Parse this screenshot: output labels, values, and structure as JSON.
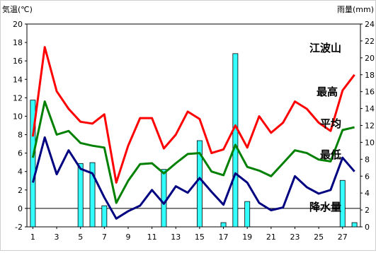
{
  "chart_data": {
    "type": "line",
    "y_left_label": "気温(℃)",
    "y_right_label": "雨量(mm)",
    "place_label": "江波山",
    "x_ticks": [
      "1",
      "3",
      "5",
      "7",
      "9",
      "11",
      "13",
      "15",
      "17",
      "19",
      "21",
      "23",
      "25",
      "27"
    ],
    "y_left_ticks": [
      "-2",
      "0",
      "2",
      "4",
      "6",
      "8",
      "10",
      "12",
      "14",
      "16",
      "18",
      "20"
    ],
    "y_right_ticks": [
      "0",
      "2",
      "4",
      "6",
      "8",
      "10",
      "12",
      "14",
      "16",
      "18",
      "20",
      "22",
      "24"
    ],
    "ylim_left": [
      -2,
      20
    ],
    "ylim_right": [
      0,
      24
    ],
    "x": [
      1,
      2,
      3,
      4,
      5,
      6,
      7,
      8,
      9,
      10,
      11,
      12,
      13,
      14,
      15,
      16,
      17,
      18,
      19,
      20,
      21,
      22,
      23,
      24,
      25,
      26,
      27,
      28
    ],
    "series": [
      {
        "name": "最高",
        "color": "#ff0000",
        "values": [
          7.8,
          17.5,
          12.7,
          10.8,
          9.4,
          9.2,
          10.2,
          2.8,
          6.8,
          9.8,
          9.8,
          6.5,
          8.0,
          10.5,
          9.7,
          6.0,
          6.4,
          9.0,
          6.6,
          10.0,
          8.2,
          9.3,
          11.6,
          10.8,
          9.3,
          8.4,
          12.8,
          14.5
        ]
      },
      {
        "name": "平均",
        "color": "#008000",
        "values": [
          5.5,
          11.6,
          8.0,
          8.4,
          7.1,
          6.8,
          6.6,
          0.6,
          3.0,
          4.8,
          4.9,
          3.8,
          4.9,
          5.9,
          6.0,
          4.0,
          3.6,
          6.9,
          4.5,
          4.1,
          3.5,
          4.9,
          6.3,
          6.0,
          5.3,
          5.1,
          8.5,
          8.8
        ]
      },
      {
        "name": "最低",
        "color": "#000080",
        "values": [
          2.8,
          7.7,
          3.7,
          6.3,
          4.3,
          3.8,
          1.2,
          -1.1,
          -0.3,
          0.3,
          2.0,
          0.5,
          2.4,
          1.7,
          3.3,
          1.8,
          0.4,
          3.8,
          2.8,
          0.6,
          -0.2,
          0.1,
          3.5,
          2.3,
          1.6,
          2.0,
          5.5,
          4.0
        ]
      },
      {
        "name": "降水量",
        "color": "#33ffff",
        "type": "bar",
        "axis": "right",
        "values": [
          15.0,
          0,
          0,
          0,
          7.5,
          7.6,
          2.5,
          0,
          0,
          0,
          0,
          6.8,
          0,
          0,
          10.2,
          0,
          0.5,
          20.5,
          3.0,
          0,
          0,
          0,
          0,
          0,
          0,
          0,
          5.5,
          0.5
        ]
      }
    ],
    "grid": false
  }
}
